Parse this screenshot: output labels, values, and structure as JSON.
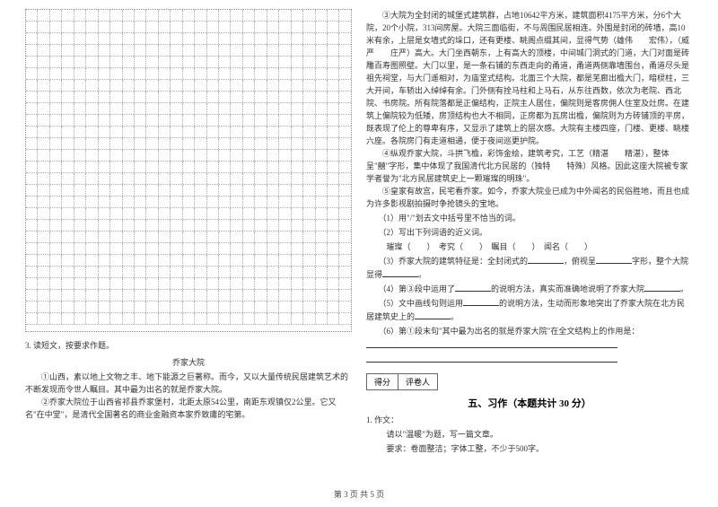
{
  "left": {
    "grid": {
      "rows": 27,
      "cols": 27,
      "border_color": "#aaaaaa"
    },
    "q3_label": "3.",
    "q3_prompt": "读短文，按要求作题。",
    "article_title": "乔家大院",
    "para1": "①山西，素以地上文物之丰、地下能源之巨著称。而今，又以大量传统民居建筑艺术的不断发现而令世人瞩目。其中最为出名的就是乔家大院。",
    "para2": "②乔家大院位于山西省祁县乔家堡村，北距太原54公里，南距东观镇仅2公里。它又名\"在中堂\"，是清代全国著名的商业金融资本家乔致庸的宅第。"
  },
  "right": {
    "para3": "③大院为全封闭的城堡式建筑群，占地10642平方米，建筑面积4175平方米，分6个大院，20个小院，313间房屋。大院三面临街，不与周围民居相连。外围是封闭的砖墙，高10米有余，上层是女墙式的垛口，还有更楼、眺阁点缀其间，显得气势（雄伟　　宏伟），（威严　　庄严）高大。大门坐西朝东，上有高大的顶楼，中间城门洞式的门道，大门对面是砖雕百寿图照壁。大门以里，是一条石铺的东西走向的甬道，甬道两侧靠墙围台，甬道尽头是祖先祠堂，与大门遥相对，为庙堂式结构。北面三个大院，都是芜廊出檐大门，暗棂柱，三大开间，车轿出入绰绰有余。门外侧有拴马柱和上马石，从东往西数，依次为老院、西北院、书房院。所有院落都是正偏结构，正院主人居住，偏院则是客房佣人住室及灶房。在建筑上偏院较为低矮，房顶结构也大不相同，正房都为瓦房出檐，偏院则为方砖铺顶的平房，既表现了伦上的尊卑有序，又显示了建筑上的层次感。大院有主楼四座，门楼、更楼、眺楼六座。各院房门有走道相通，便于夜间巡更护院。",
    "para4": "④纵观乔家大院，斗拱飞檐，彩饰金绘，建筑考究，工艺（精湛　　精湛），整体呈\"囍\"字形，集中体现了我国清代北方民居的（独特　　特殊）风格。因此这座大院被专家学者誉为\"北方民居建筑史上一颗璀璨的明珠\"。",
    "para5": "⑤皇家有故宫，民宅看乔家。如今，乔家大院业已成为中外闻名的民俗胜地，而且也成为许多影视剧拍摄时争抢镜头的宝地。",
    "q1": "（1）用\"/\"划去文中括号里不恰当的词。",
    "q2": "（2）写出下列词语的近义词。",
    "q2_words": "璀璨（　　）　考究（　　）　瞩目（　　）　闻名（　　）",
    "q3": "（3）乔家大院的建筑特征是：全封闭式的",
    "q3_tail": "，俯视呈",
    "q3_tail2": "字形，整个大院显得",
    "q4": "（4）第③段中运用了",
    "q4_tail": "的说明方法，真实而准确地说明了乔家大院",
    "q5": "（5）文中画线句则运用",
    "q5_tail": "的说明方法，生动而形象地突出了乔家大院在北方民居建筑史上的",
    "q6": "（6）第①段末句\"其中最为出名的就是乔家大院\"在全文结构上的作用是：",
    "score_labels": [
      "得分",
      "评卷人"
    ],
    "section5_title": "五、习作（本题共计 30 分）",
    "zuowen_num": "1.",
    "zuowen_label": "作文：",
    "zuowen_prompt": "请以\"温暖\"为题，写一篇文章。",
    "zuowen_req": "要求：卷面整洁；字体工整，不少于500字。"
  },
  "footer": "第 3 页 共 5 页",
  "colors": {
    "text": "#333333",
    "grid": "#aaaaaa",
    "bg": "#ffffff"
  },
  "fonts": {
    "body_size": 9,
    "line_height": 14,
    "section_size": 11
  }
}
